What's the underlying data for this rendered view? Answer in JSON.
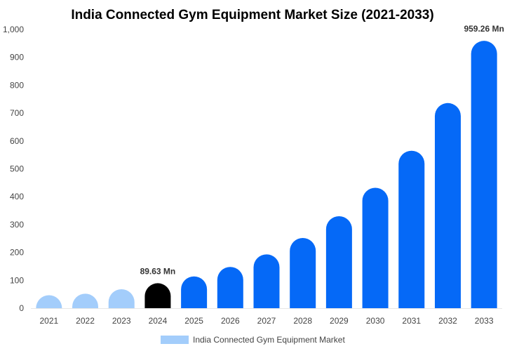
{
  "chart_data": {
    "type": "bar",
    "title": "India Connected Gym Equipment Market Size (2021-2033)",
    "xlabel": "",
    "ylabel": "",
    "categories": [
      "2021",
      "2022",
      "2023",
      "2024",
      "2025",
      "2026",
      "2027",
      "2028",
      "2029",
      "2030",
      "2031",
      "2032",
      "2033"
    ],
    "series": [
      {
        "name": "India Connected Gym Equipment Market",
        "values": [
          40,
          52,
          68,
          89.63,
          114,
          148,
          193,
          252,
          330,
          432,
          565,
          736,
          959.26
        ]
      }
    ],
    "ylim": [
      0,
      1000
    ],
    "yticks": [
      0,
      100,
      200,
      300,
      400,
      500,
      600,
      700,
      800,
      900,
      1000
    ],
    "ytick_labels": [
      "0",
      "100",
      "200",
      "300",
      "400",
      "500",
      "600",
      "700",
      "800",
      "900",
      "1,000"
    ],
    "data_labels": [
      {
        "category": "2024",
        "text": "89.63 Mn"
      },
      {
        "category": "2033",
        "text": "959.26 Mn"
      }
    ],
    "grid": false,
    "legend_position": "bottom-center",
    "colors": {
      "historical": "#a3cdfb",
      "base_year": "#000000",
      "forecast": "#0569f7",
      "legend_swatch": "#a3cdfb"
    },
    "bar_color_groups": [
      "historical",
      "historical",
      "historical",
      "base_year",
      "forecast",
      "forecast",
      "forecast",
      "forecast",
      "forecast",
      "forecast",
      "forecast",
      "forecast",
      "forecast"
    ]
  }
}
